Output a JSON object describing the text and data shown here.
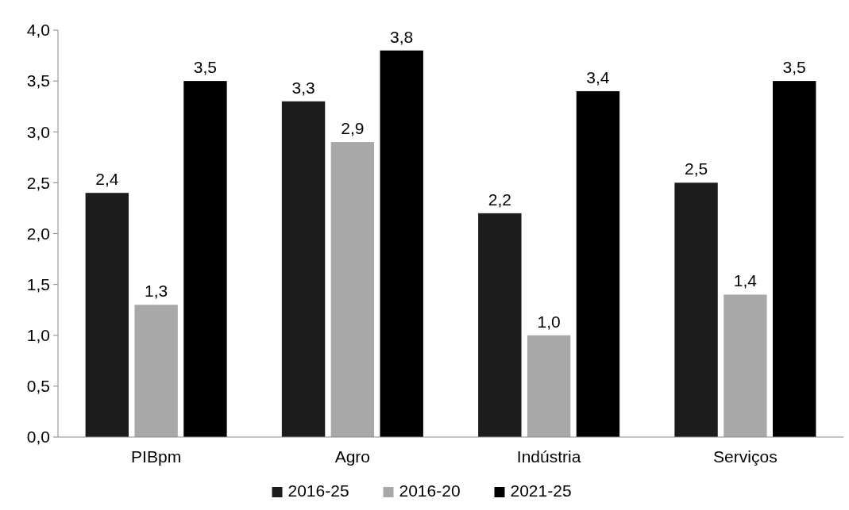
{
  "chart_data": {
    "type": "bar",
    "categories": [
      "PIBpm",
      "Agro",
      "Indústria",
      "Serviços"
    ],
    "series": [
      {
        "name": "2016-25",
        "color": "#1c1c1c",
        "values": [
          2.4,
          3.3,
          2.2,
          2.5
        ],
        "value_labels": [
          "2,4",
          "3,3",
          "2,2",
          "2,5"
        ]
      },
      {
        "name": "2016-20",
        "color": "#a8a8a8",
        "values": [
          1.3,
          2.9,
          1.0,
          1.4
        ],
        "value_labels": [
          "1,3",
          "2,9",
          "1,0",
          "1,4"
        ]
      },
      {
        "name": "2021-25",
        "color": "#000000",
        "values": [
          3.5,
          3.8,
          3.4,
          3.5
        ],
        "value_labels": [
          "3,5",
          "3,8",
          "3,4",
          "3,5"
        ]
      }
    ],
    "ylim": [
      0,
      4
    ],
    "yticks": [
      {
        "value": 0,
        "label": "0,0"
      },
      {
        "value": 0.5,
        "label": "0,5"
      },
      {
        "value": 1,
        "label": "1,0"
      },
      {
        "value": 1.5,
        "label": "1,5"
      },
      {
        "value": 2,
        "label": "2,0"
      },
      {
        "value": 2.5,
        "label": "2,5"
      },
      {
        "value": 3,
        "label": "3,0"
      },
      {
        "value": 3.5,
        "label": "3,5"
      },
      {
        "value": 4,
        "label": "4,0"
      }
    ],
    "grid": false,
    "legend": "bottom"
  }
}
